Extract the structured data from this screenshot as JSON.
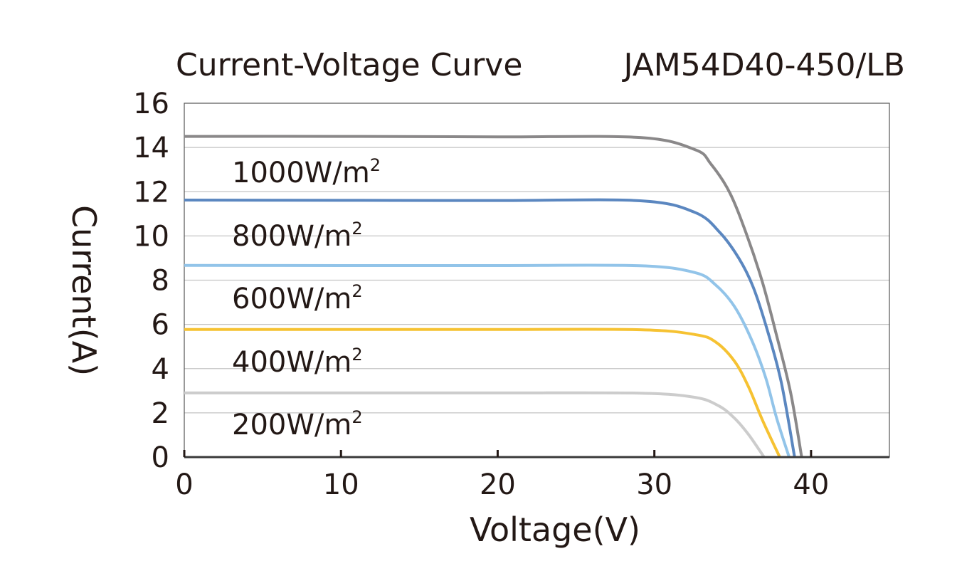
{
  "chart_data": {
    "type": "line",
    "title": "Current-Voltage Curve",
    "subtitle": "JAM54D40-450/LB",
    "xlabel": "Voltage(V)",
    "ylabel": "Current(A)",
    "xlim": [
      0,
      45
    ],
    "ylim": [
      0,
      16
    ],
    "xticks": [
      "0",
      "10",
      "20",
      "30",
      "40"
    ],
    "yticks": [
      "0",
      "2",
      "4",
      "6",
      "8",
      "10",
      "12",
      "14",
      "16"
    ],
    "grid": "horizontal",
    "series": [
      {
        "name": "1000W/m",
        "sup": "2",
        "color": "#8a8889",
        "x": [
          0,
          10,
          20,
          29.1,
          32.6,
          33.6,
          34.8,
          35.9,
          36.9,
          37.8,
          38.7,
          39.4
        ],
        "y": [
          14.5,
          14.5,
          14.48,
          14.45,
          13.9,
          13.26,
          11.97,
          10.04,
          7.9,
          5.5,
          2.9,
          0
        ]
      },
      {
        "name": "800W/m",
        "sup": "2",
        "color": "#5b87c0",
        "x": [
          0,
          10,
          20,
          29.1,
          32.6,
          34.2,
          35.4,
          36.3,
          37.2,
          38.1,
          38.95
        ],
        "y": [
          11.62,
          11.61,
          11.6,
          11.59,
          11.06,
          10.14,
          8.98,
          7.7,
          5.76,
          3.38,
          0
        ]
      },
      {
        "name": "600W/m",
        "sup": "2",
        "color": "#92c4e9",
        "x": [
          0,
          10,
          20,
          29.1,
          32.6,
          33.9,
          35.1,
          36.2,
          37.1,
          37.8,
          38.6
        ],
        "y": [
          8.67,
          8.66,
          8.66,
          8.65,
          8.34,
          7.79,
          6.82,
          5.31,
          3.6,
          1.77,
          0
        ]
      },
      {
        "name": "400W/m",
        "sup": "2",
        "color": "#f6c232",
        "x": [
          0,
          10,
          20,
          29.1,
          32.6,
          33.9,
          35.1,
          36.0,
          36.9,
          38.0
        ],
        "y": [
          5.77,
          5.77,
          5.77,
          5.76,
          5.54,
          5.21,
          4.35,
          3.19,
          1.67,
          0
        ]
      },
      {
        "name": "200W/m",
        "sup": "2",
        "color": "#cccccc",
        "x": [
          0,
          10,
          20,
          29.1,
          32.6,
          34.1,
          35.1,
          36.0,
          37.0
        ],
        "y": [
          2.9,
          2.9,
          2.9,
          2.89,
          2.7,
          2.32,
          1.77,
          1.03,
          0
        ]
      }
    ]
  }
}
